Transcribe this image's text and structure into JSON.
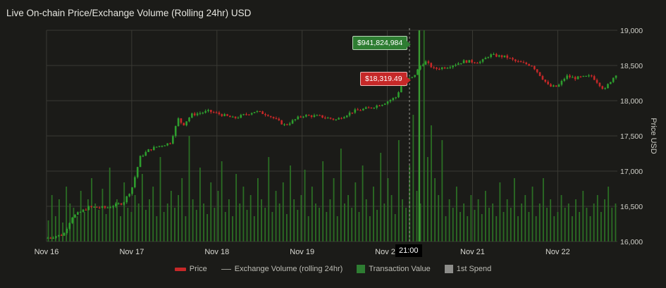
{
  "title": "Live On-chain Price/Exchange Volume (Rolling 24hr) USD",
  "legend": {
    "price": "Price",
    "exchange_volume": "Exchange Volume (rolling 24hr)",
    "transaction_value": "Transaction Value",
    "first_spend": "1st Spend"
  },
  "colors": {
    "up": "#2e9e2e",
    "down": "#c62828",
    "volume": "#2b6e24",
    "grid": "#3a3a34",
    "background": "#1b1b18"
  },
  "tooltip": {
    "volume": "$941,824,984",
    "price": "$18,319.49"
  },
  "crosshair_label": "21:00",
  "chart_data": {
    "type": "line",
    "x_tick_labels": [
      "Nov 16",
      "Nov 17",
      "Nov 18",
      "Nov 19",
      "Nov 20",
      "Nov 21",
      "Nov 22"
    ],
    "x_range_days": [
      16.0,
      22.7
    ],
    "y_label": "Price USD",
    "y_ticks": [
      16000,
      16500,
      17000,
      17500,
      18000,
      18500,
      19000
    ],
    "y_tick_labels": [
      "16,000",
      "16,500",
      "17,000",
      "17,500",
      "18,000",
      "18,500",
      "19,000"
    ],
    "ylim": [
      16000,
      19000
    ],
    "grid": true,
    "legend_position": "bottom",
    "price_series": {
      "name": "Price",
      "x": [
        16.0,
        16.2,
        16.3,
        16.5,
        16.7,
        16.9,
        17.0,
        17.1,
        17.2,
        17.3,
        17.45,
        17.55,
        17.6,
        17.7,
        17.9,
        18.0,
        18.2,
        18.45,
        18.6,
        18.8,
        19.0,
        19.2,
        19.4,
        19.6,
        19.8,
        19.95,
        20.1,
        20.2,
        20.3,
        20.4,
        20.45,
        20.55,
        20.7,
        20.9,
        21.1,
        21.2,
        21.4,
        21.5,
        21.7,
        21.9,
        22.0,
        22.1,
        22.2,
        22.4,
        22.55,
        22.6,
        22.7
      ],
      "y": [
        16050,
        16100,
        16350,
        16490,
        16480,
        16550,
        16750,
        17200,
        17300,
        17350,
        17400,
        17750,
        17650,
        17800,
        17850,
        17820,
        17750,
        17850,
        17800,
        17650,
        17790,
        17780,
        17730,
        17850,
        17900,
        17960,
        18050,
        18300,
        18330,
        18520,
        18550,
        18450,
        18480,
        18560,
        18550,
        18650,
        18620,
        18560,
        18500,
        18200,
        18200,
        18350,
        18320,
        18350,
        18150,
        18250,
        18400
      ]
    },
    "volume_series": {
      "name": "Transaction Value",
      "peak_value": 941824984,
      "peak_x": 20.375,
      "relative_heights": [
        0.1,
        0.22,
        0.12,
        0.2,
        0.09,
        0.26,
        0.18,
        0.16,
        0.12,
        0.24,
        0.14,
        0.2,
        0.3,
        0.18,
        0.15,
        0.25,
        0.13,
        0.35,
        0.17,
        0.2,
        0.12,
        0.28,
        0.16,
        0.14,
        0.22,
        0.18,
        0.32,
        0.15,
        0.2,
        0.26,
        0.12,
        0.4,
        0.14,
        0.18,
        0.24,
        0.16,
        0.22,
        0.3,
        0.12,
        0.5,
        0.2,
        0.15,
        0.35,
        0.18,
        0.13,
        0.28,
        0.16,
        0.24,
        0.38,
        0.14,
        0.2,
        0.12,
        0.32,
        0.18,
        0.26,
        0.15,
        0.22,
        0.12,
        0.3,
        0.2,
        0.16,
        0.4,
        0.14,
        0.24,
        0.18,
        0.28,
        0.13,
        0.36,
        0.2,
        0.15,
        0.22,
        0.34,
        0.12,
        0.26,
        0.18,
        0.16,
        0.38,
        0.14,
        0.2,
        0.3,
        0.12,
        0.44,
        0.18,
        0.22,
        0.16,
        0.28,
        0.14,
        0.36,
        0.2,
        0.12,
        0.26,
        0.15,
        0.42,
        0.18,
        0.3,
        0.22,
        0.13,
        0.48,
        0.2,
        0.16,
        0.36,
        0.6,
        0.24,
        0.18,
        1.0,
        0.4,
        0.55,
        0.3,
        0.22,
        0.48,
        0.12,
        0.2,
        0.16,
        0.26,
        0.14,
        0.18,
        0.12,
        0.22,
        0.15,
        0.2,
        0.13,
        0.24,
        0.16,
        0.18,
        0.12,
        0.28,
        0.14,
        0.2,
        0.16,
        0.3,
        0.12,
        0.18,
        0.22,
        0.14,
        0.26,
        0.12,
        0.18,
        0.3,
        0.16,
        0.2,
        0.12,
        0.14,
        0.22,
        0.16,
        0.18,
        0.12,
        0.2,
        0.14,
        0.24,
        0.16,
        0.12,
        0.18,
        0.22,
        0.14,
        0.2,
        0.26,
        0.16,
        0.18
      ]
    }
  }
}
